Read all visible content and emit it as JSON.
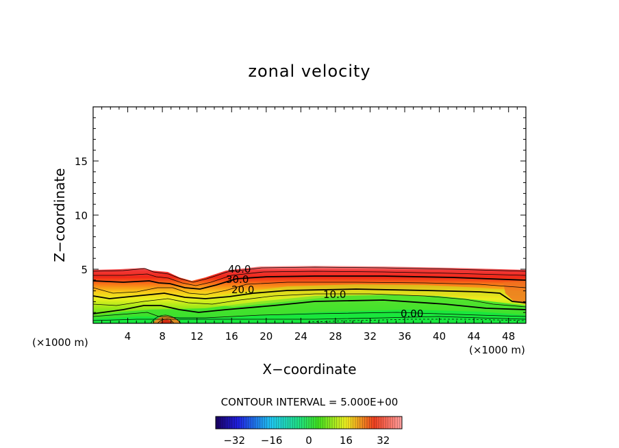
{
  "chart_data": {
    "type": "heatmap",
    "title": "zonal velocity",
    "xlabel": "X−coordinate",
    "ylabel": "Z−coordinate",
    "x_unit": "(×1000 m)",
    "xlim": [
      0,
      50
    ],
    "ylim": [
      0,
      20
    ],
    "x_ticks": [
      4,
      8,
      12,
      16,
      20,
      24,
      28,
      32,
      36,
      40,
      44,
      48
    ],
    "y_ticks": [
      5,
      10,
      15
    ],
    "contour_interval_text": "CONTOUR INTERVAL = 5.000E+00",
    "contour_labels": [
      {
        "text": "40.0",
        "x": 15.4,
        "z": 5.0
      },
      {
        "text": "30.0",
        "x": 15.0,
        "z": 4.2
      },
      {
        "text": "20.0",
        "x": 17.0,
        "z": 3.1
      },
      {
        "text": "10.0",
        "x": 28.2,
        "z": 2.7
      },
      {
        "text": "0.00",
        "x": 37.2,
        "z": 0.9
      }
    ],
    "field_description_top_z": 5.2,
    "colorbar": {
      "range": [
        -40,
        40
      ],
      "tick_labels": [
        "−32",
        "−16",
        "0",
        "16",
        "32"
      ],
      "tick_values": [
        -32,
        -16,
        0,
        16,
        32
      ]
    },
    "grid": false
  }
}
